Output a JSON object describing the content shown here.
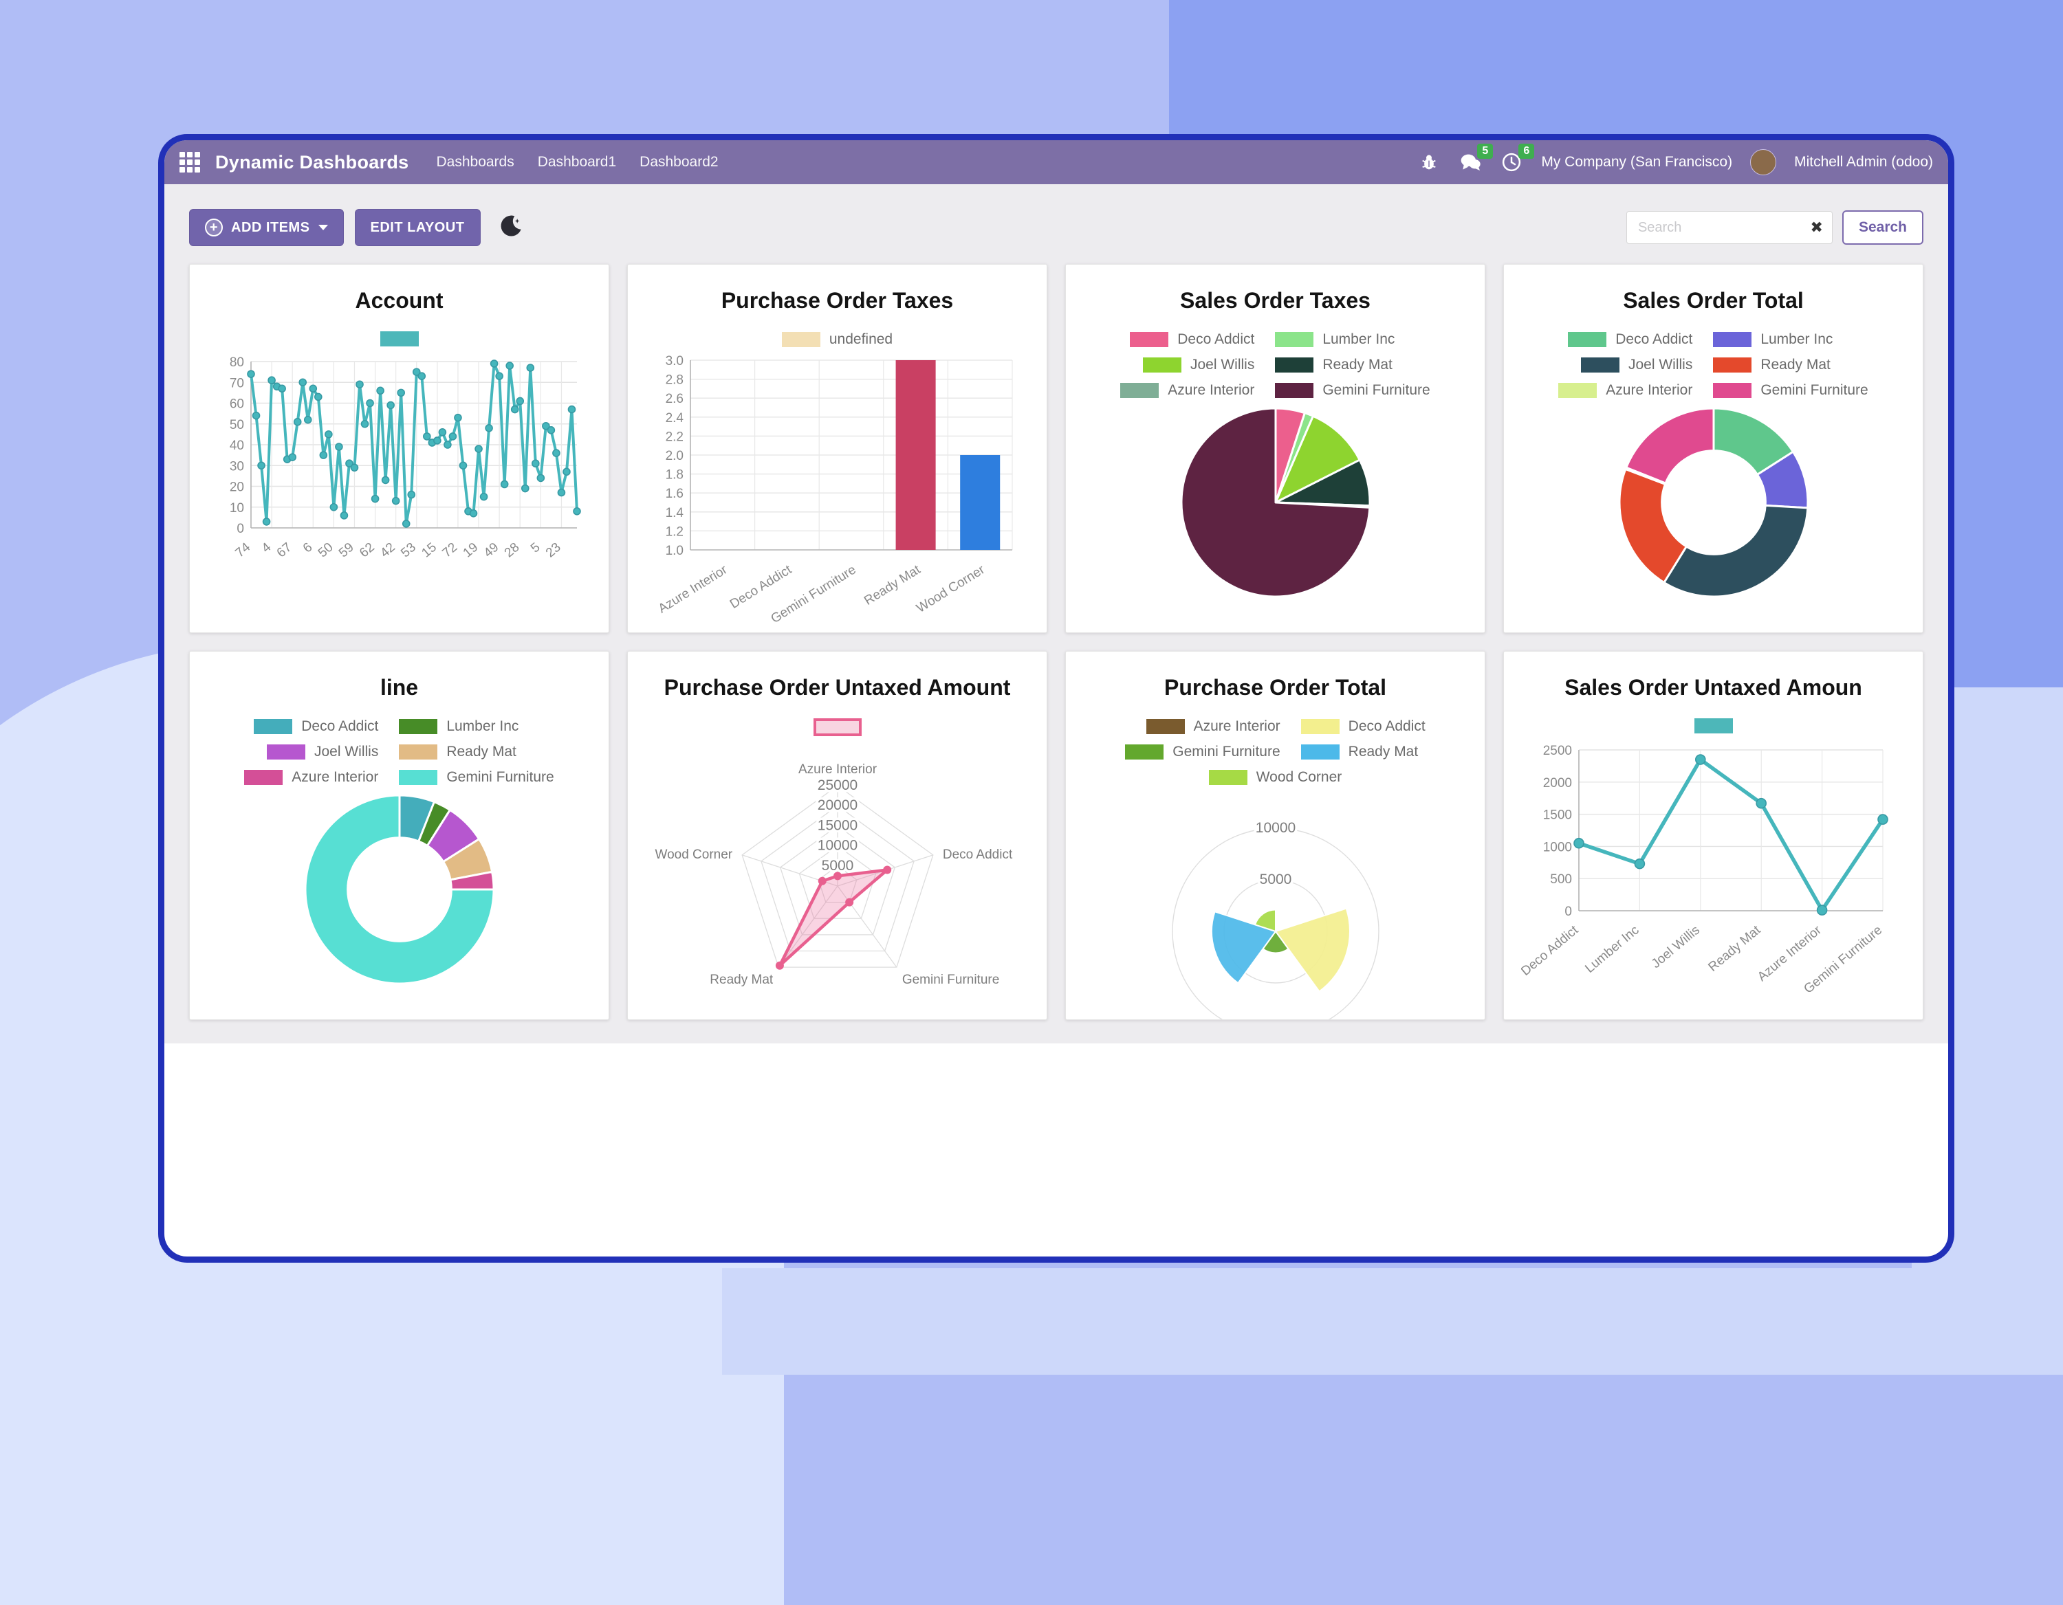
{
  "nav": {
    "app_title": "Dynamic Dashboards",
    "menus": [
      "Dashboards",
      "Dashboard1",
      "Dashboard2"
    ],
    "messages_badge": "5",
    "activities_badge": "6",
    "company": "My Company (San Francisco)",
    "user": "Mitchell Admin (odoo)"
  },
  "toolbar": {
    "add_items_label": "ADD ITEMS",
    "edit_layout_label": "EDIT LAYOUT",
    "search_placeholder": "Search",
    "search_button_label": "Search"
  },
  "colors": {
    "navbar": "#7d6fa6",
    "button_purple": "#7164ab",
    "window_border": "#2130b8",
    "teal_series": "#45b6bc",
    "badge_green": "#3fae4f"
  },
  "chart_data": [
    {
      "id": "account",
      "type": "line",
      "title": "Account",
      "legend": [
        {
          "label": "",
          "color": "#4db7b9"
        }
      ],
      "color": "#45b6bc",
      "ylim": [
        0,
        80
      ],
      "ystep": 10,
      "grid": true,
      "tick_labels": [
        "74",
        "4",
        "67",
        "6",
        "50",
        "59",
        "62",
        "42",
        "53",
        "15",
        "72",
        "19",
        "49",
        "28",
        "5",
        "23"
      ],
      "tick_every": 4,
      "values": [
        74,
        54,
        30,
        3,
        71,
        68,
        67,
        33,
        34,
        51,
        70,
        52,
        67,
        63,
        35,
        45,
        10,
        39,
        6,
        31,
        29,
        69,
        50,
        60,
        14,
        66,
        23,
        59,
        13,
        65,
        2,
        16,
        75,
        73,
        44,
        41,
        42,
        46,
        40,
        44,
        53,
        30,
        8,
        7,
        38,
        15,
        48,
        79,
        73,
        21,
        78,
        57,
        61,
        19,
        77,
        31,
        24,
        49,
        47,
        36,
        17,
        27,
        57,
        8
      ]
    },
    {
      "id": "po_taxes",
      "type": "bar",
      "title": "Purchase Order Taxes",
      "legend": [
        {
          "label": "undefined",
          "color": "#f3dfb4"
        }
      ],
      "categories": [
        "Azure Interior",
        "Deco Addict",
        "Gemini Furniture",
        "Ready Mat",
        "Wood Corner"
      ],
      "values": [
        null,
        null,
        null,
        3.0,
        2.0
      ],
      "bar_colors": [
        "#c94063",
        "#c94063",
        "#c94063",
        "#c94063",
        "#2e7ede"
      ],
      "ylim": [
        1.0,
        3.0
      ],
      "ystep": 0.2,
      "grid": true
    },
    {
      "id": "so_taxes",
      "type": "pie",
      "title": "Sales Order Taxes",
      "legend": [
        {
          "label": "Deco Addict",
          "color": "#ec5f8d"
        },
        {
          "label": "Lumber Inc",
          "color": "#8be48a"
        },
        {
          "label": "Joel Willis",
          "color": "#8ed42f"
        },
        {
          "label": "Ready Mat",
          "color": "#1e4038"
        },
        {
          "label": "Azure Interior",
          "color": "#7fae96"
        },
        {
          "label": "Gemini Furniture",
          "color": "#5e2342"
        }
      ],
      "labels": [
        "Deco Addict",
        "Lumber Inc",
        "Joel Willis",
        "Ready Mat",
        "Azure Interior",
        "Gemini Furniture"
      ],
      "values": [
        5,
        1.5,
        11,
        8,
        0.3,
        74
      ],
      "colors": [
        "#ec5f8d",
        "#8be48a",
        "#8ed42f",
        "#1e4038",
        "#7fae96",
        "#5e2342"
      ]
    },
    {
      "id": "so_total",
      "type": "doughnut",
      "title": "Sales Order Total",
      "legend": [
        {
          "label": "Deco Addict",
          "color": "#5fc78c"
        },
        {
          "label": "Lumber Inc",
          "color": "#6b64d9"
        },
        {
          "label": "Joel Willis",
          "color": "#2d4f5e"
        },
        {
          "label": "Ready Mat",
          "color": "#e4492c"
        },
        {
          "label": "Azure Interior",
          "color": "#d7ef8e"
        },
        {
          "label": "Gemini Furniture",
          "color": "#e04a8f"
        }
      ],
      "labels": [
        "Deco Addict",
        "Lumber Inc",
        "Joel Willis",
        "Ready Mat",
        "Azure Interior",
        "Gemini Furniture"
      ],
      "values": [
        16,
        10,
        33,
        22,
        0.3,
        19
      ],
      "colors": [
        "#5fc78c",
        "#6b64d9",
        "#2d4f5e",
        "#e4492c",
        "#d7ef8e",
        "#e04a8f"
      ]
    },
    {
      "id": "line_card",
      "type": "doughnut",
      "title": "line",
      "legend": [
        {
          "label": "Deco Addict",
          "color": "#44adbb"
        },
        {
          "label": "Lumber Inc",
          "color": "#478c27"
        },
        {
          "label": "Joel Willis",
          "color": "#b657cf"
        },
        {
          "label": "Ready Mat",
          "color": "#e2bb85"
        },
        {
          "label": "Azure Interior",
          "color": "#d44f97"
        },
        {
          "label": "Gemini Furniture",
          "color": "#57dfd3"
        }
      ],
      "labels": [
        "Deco Addict",
        "Lumber Inc",
        "Joel Willis",
        "Ready Mat",
        "Azure Interior",
        "Gemini Furniture"
      ],
      "values": [
        6,
        3,
        7,
        6,
        3,
        75
      ],
      "colors": [
        "#44adbb",
        "#478c27",
        "#b657cf",
        "#e2bb85",
        "#d44f97",
        "#57dfd3"
      ]
    },
    {
      "id": "po_untaxed",
      "type": "radar",
      "title": "Purchase Order Untaxed Amount",
      "legend": [
        {
          "label": "",
          "color": "#f8d5e1",
          "border": "#e8608f"
        }
      ],
      "axes": [
        "Azure Interior",
        "Deco Addict",
        "Gemini Furniture",
        "Ready Mat",
        "Wood Corner"
      ],
      "values": [
        2500,
        13000,
        5000,
        24500,
        4000
      ],
      "rticks": [
        5000,
        10000,
        15000,
        20000,
        25000
      ],
      "rmax": 25000,
      "color": "#e8608f",
      "fill": "rgba(236,112,158,0.30)"
    },
    {
      "id": "po_total",
      "type": "polarArea",
      "title": "Purchase Order Total",
      "legend": [
        {
          "label": "Azure Interior",
          "color": "#7a5b2e"
        },
        {
          "label": "Deco Addict",
          "color": "#f3ef8e"
        },
        {
          "label": "Gemini Furniture",
          "color": "#63a82d"
        },
        {
          "label": "Ready Mat",
          "color": "#4cb9e9"
        },
        {
          "label": "Wood Corner",
          "color": "#a6da45"
        }
      ],
      "labels": [
        "Azure Interior",
        "Deco Addict",
        "Gemini Furniture",
        "Ready Mat",
        "Wood Corner"
      ],
      "values": [
        100,
        7200,
        2100,
        6200,
        2100
      ],
      "colors": [
        "#7a5b2e",
        "#f3ef8e",
        "#63a82d",
        "#4cb9e9",
        "#a6da45"
      ],
      "rticks": [
        5000,
        10000
      ],
      "rmax": 10000
    },
    {
      "id": "so_untaxed",
      "type": "line",
      "title": "Sales Order Untaxed Amoun",
      "legend": [
        {
          "label": "",
          "color": "#4db7b9"
        }
      ],
      "color": "#45b6bc",
      "categories": [
        "Deco Addict",
        "Lumber Inc",
        "Joel Willis",
        "Ready Mat",
        "Azure Interior",
        "Gemini Furniture"
      ],
      "values": [
        1050,
        730,
        2350,
        1670,
        10,
        1420
      ],
      "ylim": [
        0,
        2500
      ],
      "ystep": 500,
      "grid": true
    }
  ]
}
